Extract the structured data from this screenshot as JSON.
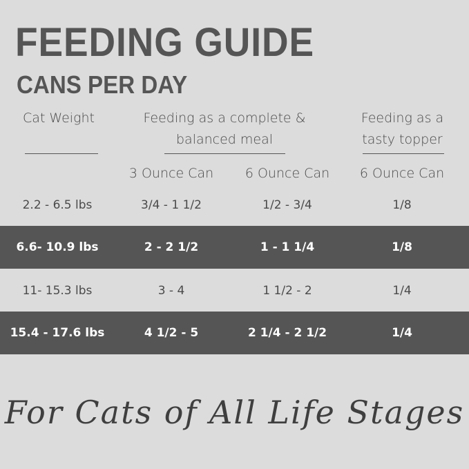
{
  "header": {
    "title": "FEEDING GUIDE",
    "subtitle": "CANS PER DAY"
  },
  "table": {
    "group_headers": [
      "Cat Weight",
      "Feeding as a complete & balanced meal",
      "Feeding as a tasty topper"
    ],
    "columns": [
      "3 Ounce Can",
      "6 Ounce Can",
      "6 Ounce Can"
    ],
    "rows": [
      [
        "2.2 - 6.5 lbs",
        "3/4 - 1 1/2",
        "1/2 - 3/4",
        "1/8"
      ],
      [
        "6.6- 10.9 lbs",
        "2 - 2 1/2",
        "1 - 1 1/4",
        "1/8"
      ],
      [
        "11- 15.3 lbs",
        "3 - 4",
        "1 1/2 - 2",
        "1/4"
      ],
      [
        "15.4 - 17.6 lbs",
        "4 1/2 - 5",
        "2 1/4 - 2 1/2",
        "1/4"
      ]
    ]
  },
  "footer": "For Cats of All Life Stages"
}
